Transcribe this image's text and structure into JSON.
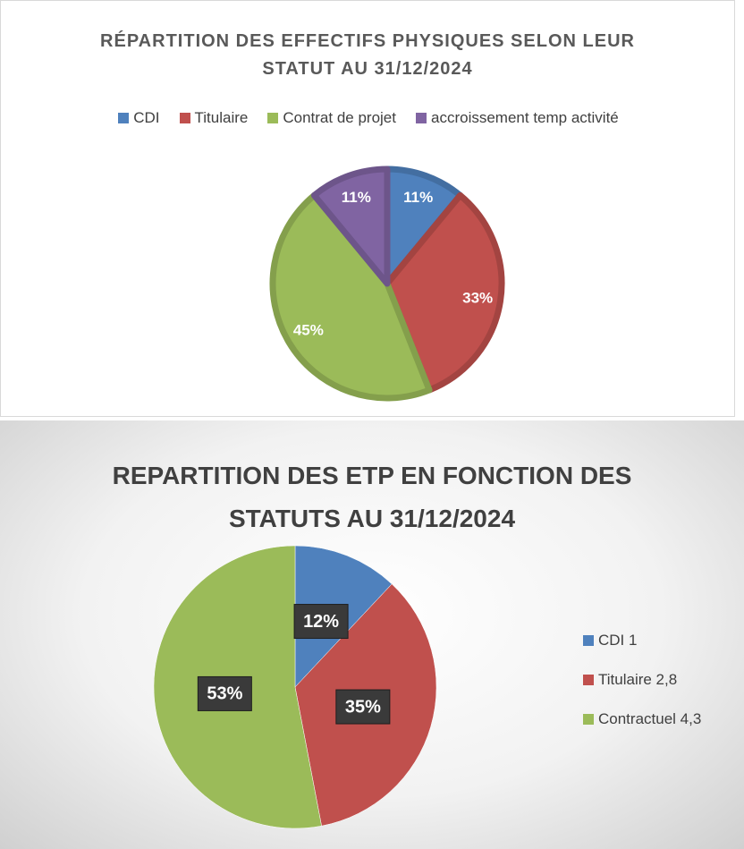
{
  "chart_data": [
    {
      "type": "pie",
      "title": "RÉPARTITION DES EFFECTIFS PHYSIQUES SELON LEUR STATUT AU 31/12/2024",
      "categories": [
        "CDI",
        "Titulaire",
        "Contrat de projet",
        "accroissement temp activité"
      ],
      "values": [
        11,
        33,
        45,
        11
      ],
      "value_labels": [
        "11%",
        "33%",
        "45%",
        "11%"
      ],
      "colors": [
        "#4f81bd",
        "#c0504d",
        "#9bbb59",
        "#8064a2"
      ],
      "legend": "top"
    },
    {
      "type": "pie",
      "title": "REPARTITION DES ETP EN FONCTION DES STATUTS AU 31/12/2024",
      "categories": [
        "CDI 1",
        "Titulaire 2,8",
        "Contractuel 4,3"
      ],
      "values": [
        12,
        35,
        53
      ],
      "value_labels": [
        "12%",
        "35%",
        "53%"
      ],
      "colors": [
        "#4f81bd",
        "#c0504d",
        "#9bbb59"
      ],
      "legend": "right"
    }
  ]
}
